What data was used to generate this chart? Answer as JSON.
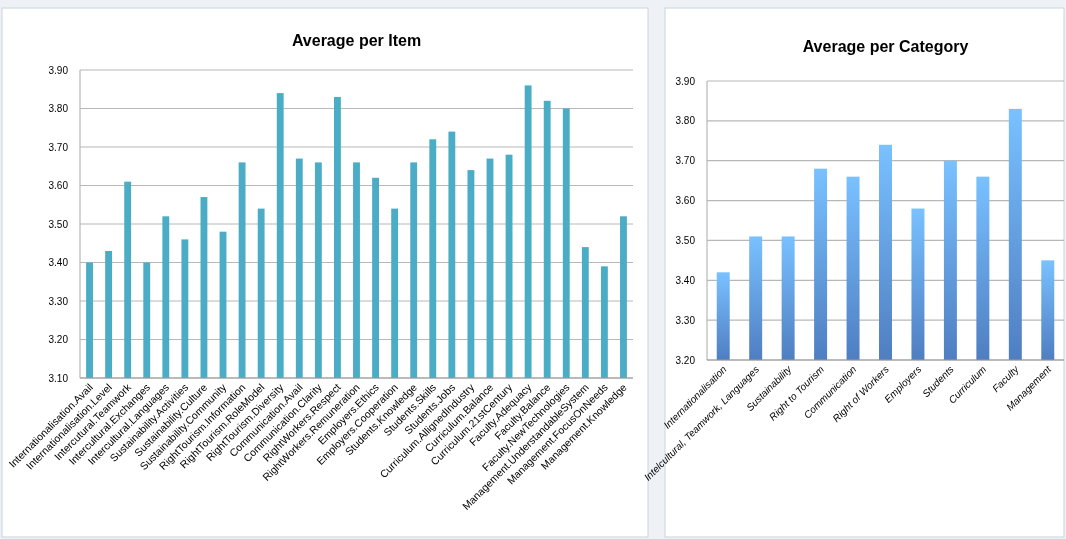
{
  "chart_data": [
    {
      "type": "bar",
      "title": "Average per Item",
      "categories": [
        "Internationalisation.Avail",
        "Internationalisation.Level",
        "Intercutural.Teamwork",
        "Intercultural.Exchanges",
        "Intercultural.Languages",
        "Sustainability.Activities",
        "Sustainability.Culture",
        "Sustainability.Community",
        "RightTourism.Information",
        "RightTourism.RoleModel",
        "RightTourism.Diversity",
        "Communication.Avail",
        "Communication.Clarity",
        "RightWorkers.Respect",
        "RightWorkers.Remuneration",
        "Employers.Ethics",
        "Employers.Cooperation",
        "Students.Knowledge",
        "Students.Skills",
        "Students.Jobs",
        "Curriculum.AllignedIndustry",
        "Curriculum.Balance",
        "Curriculum.21stCentury",
        "Faculty.Adequacy",
        "Faculty.Balance",
        "Faculty.NewTechnologies",
        "Management.UnderstandableSystem",
        "Management.FocusOnNeeds",
        "Management.Knowledge"
      ],
      "values": [
        3.4,
        3.43,
        3.61,
        3.4,
        3.52,
        3.46,
        3.57,
        3.48,
        3.66,
        3.54,
        3.84,
        3.67,
        3.66,
        3.83,
        3.66,
        3.62,
        3.54,
        3.66,
        3.72,
        3.74,
        3.64,
        3.67,
        3.68,
        3.86,
        3.82,
        3.8,
        3.44,
        3.39,
        3.52
      ],
      "color": "#4bacc6",
      "ylim": [
        3.1,
        3.9
      ],
      "yticks": [
        {
          "value": 3.1,
          "label": "3.10"
        },
        {
          "value": 3.2,
          "label": "3.20"
        },
        {
          "value": 3.3,
          "label": "3.30"
        },
        {
          "value": 3.4,
          "label": "3.40"
        },
        {
          "value": 3.5,
          "label": "3.50"
        },
        {
          "value": 3.6,
          "label": "3.60"
        },
        {
          "value": 3.7,
          "label": "3.70"
        },
        {
          "value": 3.8,
          "label": "3.80"
        },
        {
          "value": 3.9,
          "label": "3.90"
        }
      ],
      "grid": "y"
    },
    {
      "type": "bar",
      "title": "Average per Category",
      "categories": [
        "Internationalisation",
        "Intelcultural, Teamwork, Languages",
        "Sustainability",
        "Right to Tourism",
        "Communication",
        "Right of Workers",
        "Employers",
        "Students",
        "Curriculum",
        "Faculty",
        "Management"
      ],
      "values": [
        3.42,
        3.51,
        3.51,
        3.68,
        3.66,
        3.74,
        3.58,
        3.7,
        3.66,
        3.83,
        3.45
      ],
      "color": "#5b91e0",
      "ylim": [
        3.2,
        3.9
      ],
      "yticks": [
        {
          "value": 3.2,
          "label": "3.20"
        },
        {
          "value": 3.3,
          "label": "3.30"
        },
        {
          "value": 3.4,
          "label": "3.40"
        },
        {
          "value": 3.5,
          "label": "3.50"
        },
        {
          "value": 3.6,
          "label": "3.60"
        },
        {
          "value": 3.7,
          "label": "3.70"
        },
        {
          "value": 3.8,
          "label": "3.80"
        },
        {
          "value": 3.9,
          "label": "3.90"
        }
      ],
      "grid": "y"
    }
  ]
}
